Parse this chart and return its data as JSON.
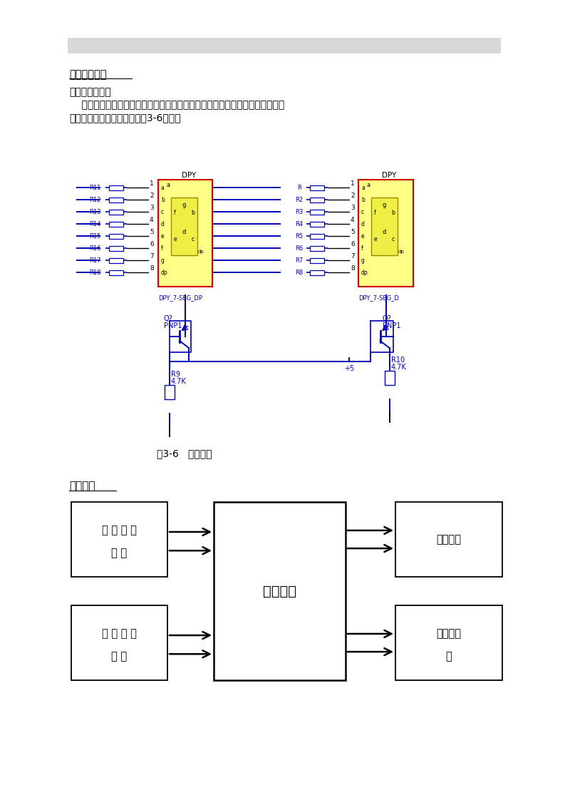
{
  "section1_title": "液晶显示模块",
  "section1_subtitle": "显示电路的设计",
  "body_line1": "    数码管显示电路的设计是采用双向共阳极串行接口电路，用来显示加热档位，",
  "body_line2": "直观性更强。它的电路图如图3-6所示：",
  "circuit_caption": "图3-6   显示电路",
  "section2_title": "控制模块",
  "bg_color": "#ffffff",
  "header_bg": "#e0e0e0",
  "blue": "#0000bb",
  "yellow": "#ffff88",
  "red_border": "#cc0000",
  "black": "#000000"
}
